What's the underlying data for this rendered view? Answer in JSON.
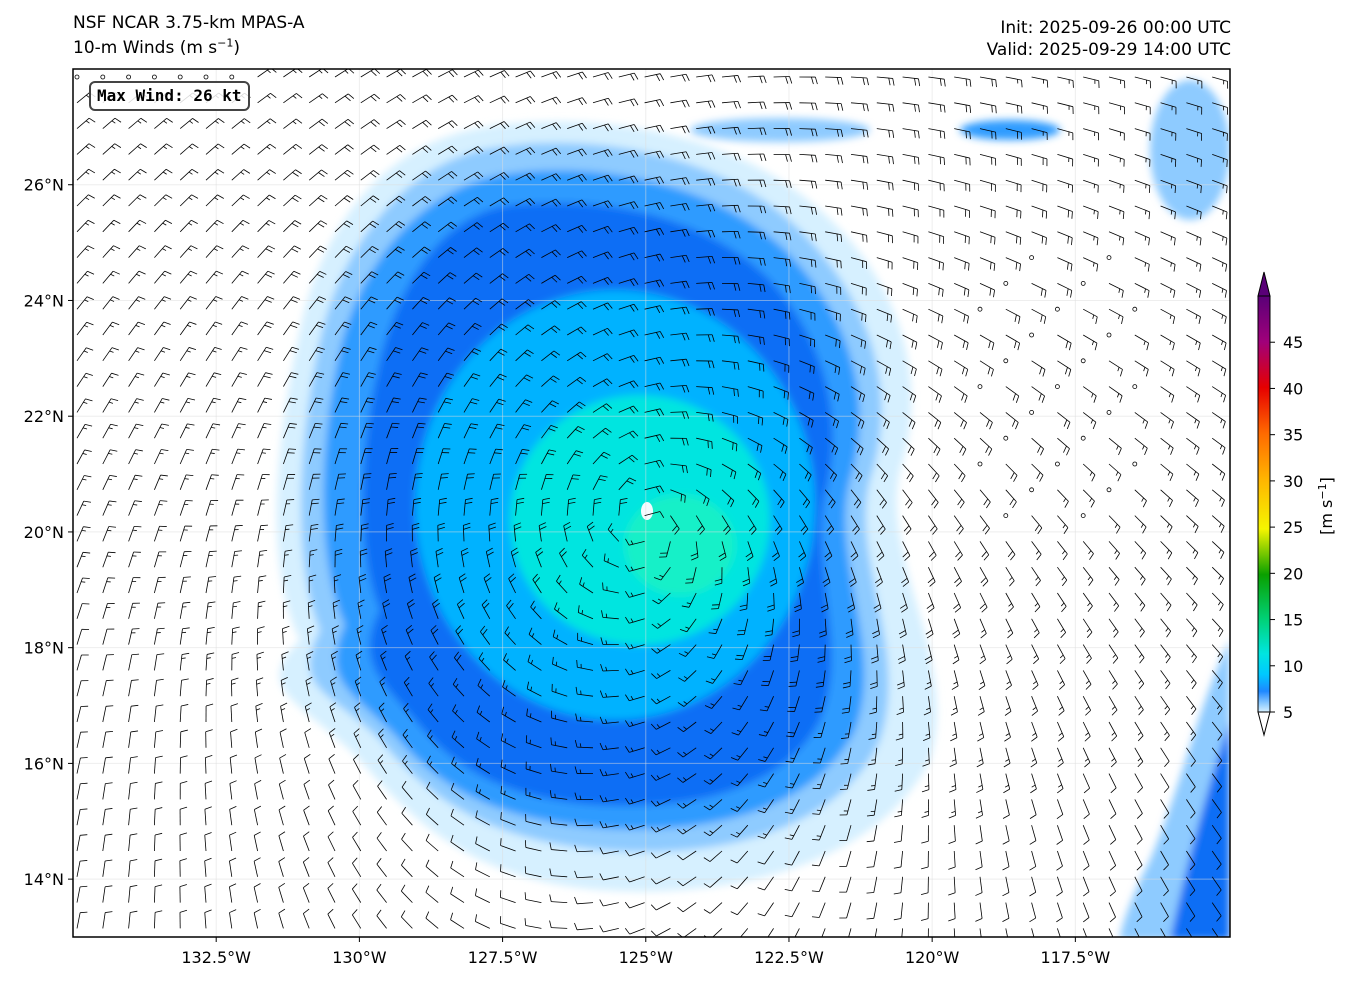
{
  "header": {
    "model": "NSF NCAR 3.75-km MPAS-A",
    "field": "10-m Winds (m s",
    "field_sup": "−1",
    "field_close": ")",
    "init": "Init: 2025-09-26 00:00 UTC",
    "valid": "Valid: 2025-09-29 14:00 UTC"
  },
  "map": {
    "lon_range": [
      -135.0,
      -114.8
    ],
    "lat_range": [
      13.0,
      28.0
    ],
    "lat_ticks": [
      {
        "value": 14,
        "label": "14°N"
      },
      {
        "value": 16,
        "label": "16°N"
      },
      {
        "value": 18,
        "label": "18°N"
      },
      {
        "value": 20,
        "label": "20°N"
      },
      {
        "value": 22,
        "label": "22°N"
      },
      {
        "value": 24,
        "label": "24°N"
      },
      {
        "value": 26,
        "label": "26°N"
      }
    ],
    "lon_ticks": [
      {
        "value": -132.5,
        "label": "132.5°W"
      },
      {
        "value": -130.0,
        "label": "130°W"
      },
      {
        "value": -127.5,
        "label": "127.5°W"
      },
      {
        "value": -125.0,
        "label": "125°W"
      },
      {
        "value": -122.5,
        "label": "122.5°W"
      },
      {
        "value": -120.0,
        "label": "120°W"
      },
      {
        "value": -117.5,
        "label": "117.5°W"
      }
    ],
    "storm_center": {
      "lon": -125.0,
      "lat": 20.3
    },
    "max_wind_label": "Max Wind: 26 kt"
  },
  "colorbar": {
    "label": "[m s",
    "label_sup": "−1",
    "label_close": "]",
    "ticks": [
      5,
      10,
      15,
      20,
      25,
      30,
      35,
      40,
      45
    ],
    "range": [
      5,
      50
    ],
    "colors": {
      "5": "#d6f0ff",
      "6": "#8ecbff",
      "7": "#2f9bff",
      "8": "#0a6ef5",
      "10": "#00b2ff",
      "12": "#00e5e0",
      "15": "#00d27a",
      "20": "#0aa000",
      "25": "#f5f500",
      "30": "#ffb400",
      "35": "#ff6a00",
      "40": "#e60000",
      "45": "#a0007a",
      "50": "#5a0078"
    }
  }
}
